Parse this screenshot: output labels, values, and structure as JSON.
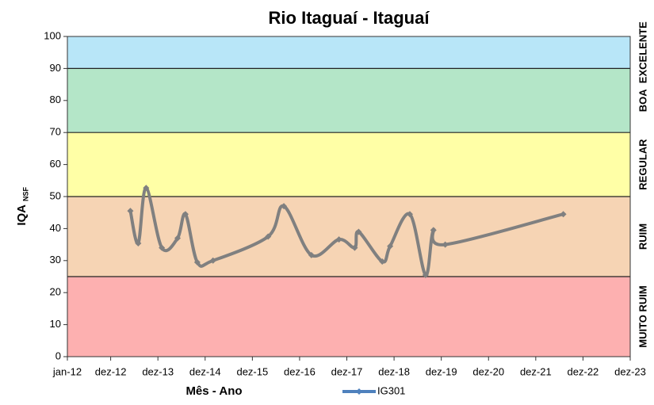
{
  "chart_data": {
    "type": "line",
    "title": "Rio Itaguaí - Itaguaí",
    "y_label": "IQA",
    "y_label_sub": "NSF",
    "x_label": "Mês - Ano",
    "xlim": [
      "2012-01",
      "2023-12"
    ],
    "xticks": [
      {
        "value": "2012-01",
        "label": "jan-12"
      },
      {
        "value": "2012-12",
        "label": "dez-12"
      },
      {
        "value": "2013-12",
        "label": "dez-13"
      },
      {
        "value": "2014-12",
        "label": "dez-14"
      },
      {
        "value": "2015-12",
        "label": "dez-15"
      },
      {
        "value": "2016-12",
        "label": "dez-16"
      },
      {
        "value": "2017-12",
        "label": "dez-17"
      },
      {
        "value": "2018-12",
        "label": "dez-18"
      },
      {
        "value": "2019-12",
        "label": "dez-19"
      },
      {
        "value": "2020-12",
        "label": "dez-20"
      },
      {
        "value": "2021-12",
        "label": "dez-21"
      },
      {
        "value": "2022-12",
        "label": "dez-22"
      },
      {
        "value": "2023-12",
        "label": "dez-23"
      }
    ],
    "ylim": [
      0,
      100
    ],
    "yticks": [
      0,
      10,
      20,
      30,
      40,
      50,
      60,
      70,
      80,
      90,
      100
    ],
    "bands": [
      {
        "name": "MUITO RUIM",
        "from": 0,
        "to": 25,
        "color": "#fdb0b0"
      },
      {
        "name": "RUIM",
        "from": 25,
        "to": 50,
        "color": "#f6d4b4"
      },
      {
        "name": "REGULAR",
        "from": 50,
        "to": 70,
        "color": "#ffffa6"
      },
      {
        "name": "BOA",
        "from": 70,
        "to": 90,
        "color": "#b4e6c8"
      },
      {
        "name": "EXCELENTE",
        "from": 90,
        "to": 100,
        "color": "#b8e6f8"
      }
    ],
    "series": [
      {
        "name": "IG301",
        "color": "#808080",
        "x": [
          "2013-05",
          "2013-07",
          "2013-09",
          "2014-01",
          "2014-05",
          "2014-07",
          "2014-10",
          "2015-02",
          "2016-04",
          "2016-08",
          "2017-03",
          "2017-10",
          "2018-02",
          "2018-03",
          "2018-09",
          "2018-11",
          "2019-04",
          "2019-08",
          "2019-10",
          "2020-01",
          "2022-07"
        ],
        "values": [
          45.5,
          35.4,
          52.7,
          34,
          37,
          44.5,
          29.5,
          30,
          37.5,
          47,
          31.7,
          36.6,
          34,
          39,
          29.7,
          34.5,
          44.5,
          25.5,
          39.5,
          35,
          44.5
        ]
      }
    ]
  }
}
